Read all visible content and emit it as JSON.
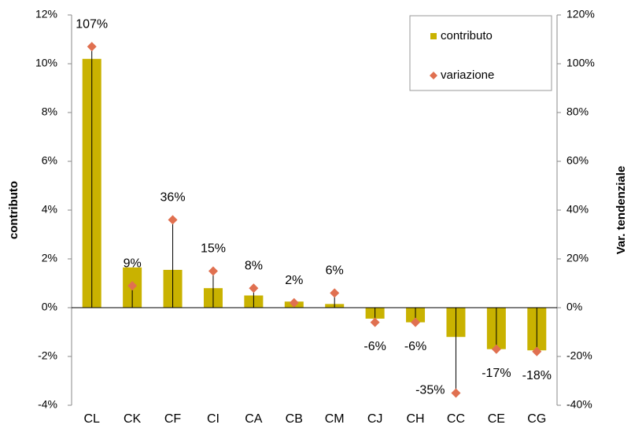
{
  "chart_data": {
    "type": "bar",
    "categories": [
      "CL",
      "CK",
      "CF",
      "CI",
      "CA",
      "CB",
      "CM",
      "CJ",
      "CH",
      "CC",
      "CE",
      "CG"
    ],
    "series": [
      {
        "name": "contributo",
        "color": "#c9b200",
        "values": [
          10.2,
          1.65,
          1.55,
          0.8,
          0.5,
          0.25,
          0.15,
          -0.45,
          -0.6,
          -1.2,
          -1.7,
          -1.75
        ]
      },
      {
        "name": "variazione",
        "type": "scatter",
        "axis": "y2",
        "color": "#e07050",
        "values": [
          107,
          9,
          36,
          15,
          8,
          2,
          6,
          -6,
          -6,
          -35,
          -17,
          -18
        ],
        "value_labels": [
          "107%",
          "9%",
          "36%",
          "15%",
          "8%",
          "2%",
          "6%",
          "-6%",
          "-6%",
          "-35%",
          "-17%",
          "-18%"
        ]
      }
    ],
    "ylabel": "contributo",
    "y2label": "Var. tendenziale",
    "ylim": [
      -4,
      12
    ],
    "yticks": [
      {
        "value": -4,
        "label": "-4%"
      },
      {
        "value": -2,
        "label": "-2%"
      },
      {
        "value": 0,
        "label": "0%"
      },
      {
        "value": 2,
        "label": "2%"
      },
      {
        "value": 4,
        "label": "4%"
      },
      {
        "value": 6,
        "label": "6%"
      },
      {
        "value": 8,
        "label": "8%"
      },
      {
        "value": 10,
        "label": "10%"
      },
      {
        "value": 12,
        "label": "12%"
      }
    ],
    "y2lim": [
      -40,
      120
    ],
    "y2ticks": [
      {
        "value": -40,
        "label": "-40%"
      },
      {
        "value": -20,
        "label": "-20%"
      },
      {
        "value": 0,
        "label": "0%"
      },
      {
        "value": 20,
        "label": "20%"
      },
      {
        "value": 40,
        "label": "40%"
      },
      {
        "value": 60,
        "label": "60%"
      },
      {
        "value": 80,
        "label": "80%"
      },
      {
        "value": 100,
        "label": "100%"
      },
      {
        "value": 120,
        "label": "120%"
      }
    ],
    "legend": "upper right"
  }
}
